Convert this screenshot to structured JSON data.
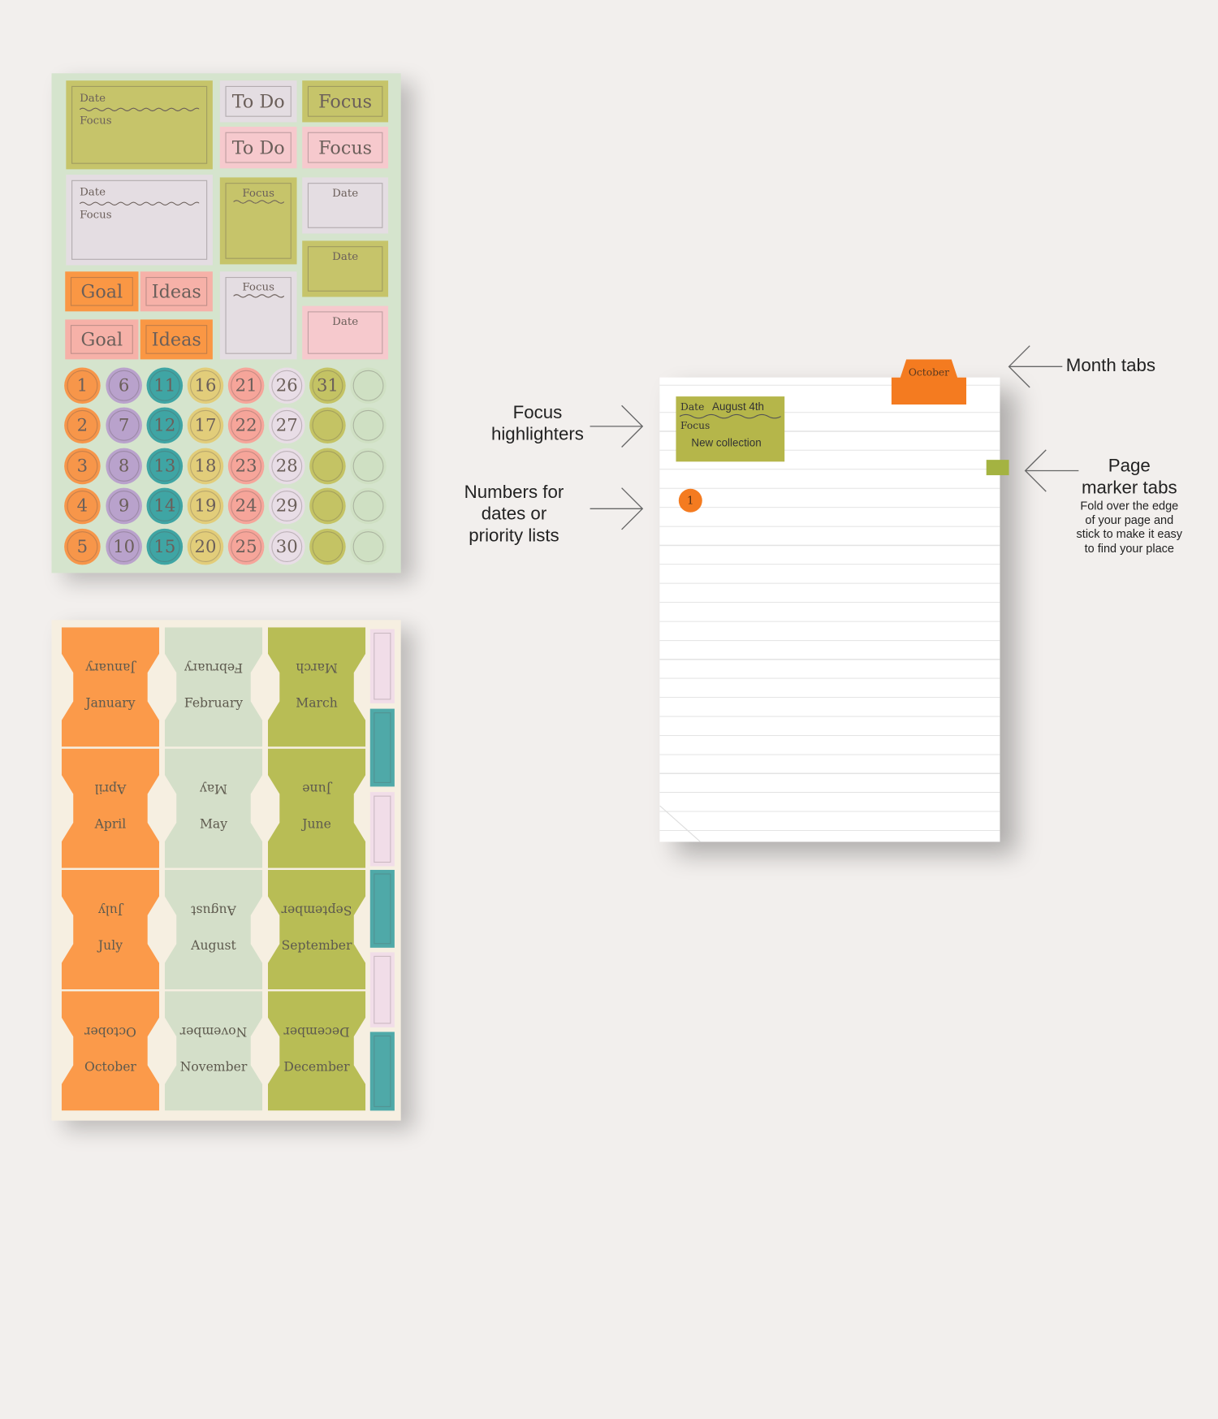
{
  "sticker_sheet": {
    "boxes": [
      {
        "label_top": "Date",
        "label_bottom": "Focus",
        "color": "#c6c46a"
      },
      {
        "label": "To Do",
        "color": "#e4dde2"
      },
      {
        "label": "Focus",
        "color": "#c6c46a"
      },
      {
        "label": "To Do",
        "color": "#f6c9cd"
      },
      {
        "label": "Focus",
        "color": "#f6c9cd"
      },
      {
        "label_top": "Date",
        "label_bottom": "Focus",
        "color": "#e4dde2"
      },
      {
        "label": "Focus",
        "color": "#c6c46a"
      },
      {
        "label": "Date",
        "color": "#e4dde2"
      },
      {
        "label": "Date",
        "color": "#c6c46a"
      },
      {
        "label": "Goal",
        "color": "#fa9744"
      },
      {
        "label": "Ideas",
        "color": "#f6b1a8"
      },
      {
        "label": "Goal",
        "color": "#f6b1a8"
      },
      {
        "label": "Ideas",
        "color": "#fa9744"
      },
      {
        "label": "Focus",
        "color": "#e4dde2"
      },
      {
        "label": "Date",
        "color": "#f6c9cd"
      }
    ],
    "number_columns": [
      {
        "color": "#f7964a",
        "numbers": [
          "1",
          "2",
          "3",
          "4",
          "5"
        ]
      },
      {
        "color": "#b9a2cc",
        "numbers": [
          "6",
          "7",
          "8",
          "9",
          "10"
        ]
      },
      {
        "color": "#3fa5a4",
        "numbers": [
          "11",
          "12",
          "13",
          "14",
          "15"
        ]
      },
      {
        "color": "#e2cd7a",
        "numbers": [
          "16",
          "17",
          "18",
          "19",
          "20"
        ]
      },
      {
        "color": "#f6a59a",
        "numbers": [
          "21",
          "22",
          "23",
          "24",
          "25"
        ]
      },
      {
        "color": "#e8dde6",
        "numbers": [
          "26",
          "27",
          "28",
          "29",
          "30"
        ]
      },
      {
        "color": "#c4c364",
        "numbers": [
          "31",
          "",
          "",
          "",
          ""
        ]
      },
      {
        "color": "#cfe0c3",
        "numbers": [
          "",
          "",
          "",
          "",
          ""
        ]
      }
    ]
  },
  "month_sheet": {
    "months": [
      "January",
      "February",
      "March",
      "April",
      "May",
      "June",
      "July",
      "August",
      "September",
      "October",
      "November",
      "December"
    ],
    "column_colors": [
      "#fb9a4a",
      "#d4dfc9",
      "#b8bd55"
    ],
    "strip_colors": [
      "#f1dde8",
      "#4fa9a8"
    ]
  },
  "notebook": {
    "month_tab": "October",
    "month_tab_color": "#f47b20",
    "highlighter": {
      "date_label": "Date",
      "date_value": "August 4th",
      "focus_label": "Focus",
      "focus_value": "New collection",
      "color": "#b5b64a"
    },
    "number_sticker": "1",
    "page_marker_color": "#a4b341"
  },
  "annotations": {
    "month_tabs": "Month tabs",
    "focus_highlighters": [
      "Focus",
      "highlighters"
    ],
    "numbers": [
      "Numbers for",
      "dates or",
      "priority lists"
    ],
    "page_marker": [
      "Page",
      "marker tabs"
    ],
    "page_marker_desc": [
      "Fold over the edge",
      "of your page and",
      "stick to make it easy",
      "to find your place"
    ]
  }
}
